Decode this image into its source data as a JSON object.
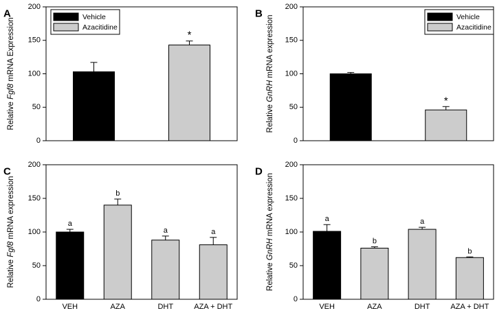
{
  "chart_data": [
    {
      "panel": "A",
      "type": "bar",
      "ylabel": [
        "Relative ",
        "Fgf8",
        " mRNA Expression"
      ],
      "ylim": [
        0,
        200
      ],
      "yticks": [
        0,
        50,
        100,
        150,
        200
      ],
      "categories": [
        "Vehicle",
        "Azacitidine"
      ],
      "show_category_labels": false,
      "values": [
        103,
        143
      ],
      "errors": [
        14,
        6
      ],
      "bar_colors": [
        "#000000",
        "#cccccc"
      ],
      "annotations": [
        "",
        "*"
      ],
      "legend": {
        "position": "top-left",
        "entries": [
          {
            "label": "Vehicle",
            "color": "#000000"
          },
          {
            "label": "Azacitidine",
            "color": "#cccccc"
          }
        ]
      }
    },
    {
      "panel": "B",
      "type": "bar",
      "ylabel": [
        "Relative ",
        "GnRH",
        " mRNA expression"
      ],
      "ylim": [
        0,
        200
      ],
      "yticks": [
        0,
        50,
        100,
        150,
        200
      ],
      "categories": [
        "Vehicle",
        "Azacitidine"
      ],
      "show_category_labels": false,
      "values": [
        100,
        46
      ],
      "errors": [
        2,
        5
      ],
      "bar_colors": [
        "#000000",
        "#cccccc"
      ],
      "annotations": [
        "",
        "*"
      ],
      "legend": {
        "position": "top-right",
        "entries": [
          {
            "label": "Vehicle",
            "color": "#000000"
          },
          {
            "label": "Azacitidine",
            "color": "#cccccc"
          }
        ]
      }
    },
    {
      "panel": "C",
      "type": "bar",
      "ylabel": [
        "Relative ",
        "Fgf8",
        " mRNA expression"
      ],
      "ylim": [
        0,
        200
      ],
      "yticks": [
        0,
        50,
        100,
        150,
        200
      ],
      "categories": [
        "VEH",
        "AZA",
        "DHT",
        "AZA + DHT"
      ],
      "show_category_labels": true,
      "values": [
        100,
        140,
        88,
        81
      ],
      "errors": [
        4,
        9,
        6,
        11
      ],
      "bar_colors": [
        "#000000",
        "#cccccc",
        "#cccccc",
        "#cccccc"
      ],
      "annotations": [
        "a",
        "b",
        "a",
        "a"
      ]
    },
    {
      "panel": "D",
      "type": "bar",
      "ylabel": [
        "Relative ",
        "GnRH",
        " mRNA expression"
      ],
      "ylim": [
        0,
        200
      ],
      "yticks": [
        0,
        50,
        100,
        150,
        200
      ],
      "categories": [
        "VEH",
        "AZA",
        "DHT",
        "AZA + DHT"
      ],
      "show_category_labels": true,
      "values": [
        101,
        76,
        104,
        62
      ],
      "errors": [
        10,
        2,
        3,
        1
      ],
      "bar_colors": [
        "#000000",
        "#cccccc",
        "#cccccc",
        "#cccccc"
      ],
      "annotations": [
        "a",
        "b",
        "a",
        "b"
      ]
    }
  ]
}
